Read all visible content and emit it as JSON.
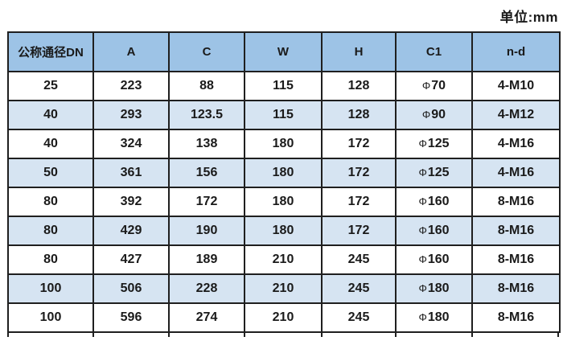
{
  "unit_label": "单位:mm",
  "colors": {
    "header_bg": "#9DC3E6",
    "row_alt_bg": "#D6E4F2",
    "border": "#1f1f1f",
    "text": "#1a1a1a"
  },
  "table": {
    "headers": [
      "公称通径DN",
      "A",
      "C",
      "W",
      "H",
      "C1",
      "n-d"
    ],
    "rows": [
      [
        "25",
        "223",
        "88",
        "115",
        "128",
        "Φ70",
        "4-M10"
      ],
      [
        "40",
        "293",
        "123.5",
        "115",
        "128",
        "Φ90",
        "4-M12"
      ],
      [
        "40",
        "324",
        "138",
        "180",
        "172",
        "Φ125",
        "4-M16"
      ],
      [
        "50",
        "361",
        "156",
        "180",
        "172",
        "Φ125",
        "4-M16"
      ],
      [
        "80",
        "392",
        "172",
        "180",
        "172",
        "Φ160",
        "8-M16"
      ],
      [
        "80",
        "429",
        "190",
        "180",
        "172",
        "Φ160",
        "8-M16"
      ],
      [
        "80",
        "427",
        "189",
        "210",
        "245",
        "Φ160",
        "8-M16"
      ],
      [
        "100",
        "506",
        "228",
        "210",
        "245",
        "Φ180",
        "8-M16"
      ],
      [
        "100",
        "596",
        "274",
        "210",
        "245",
        "Φ180",
        "8-M16"
      ]
    ]
  }
}
